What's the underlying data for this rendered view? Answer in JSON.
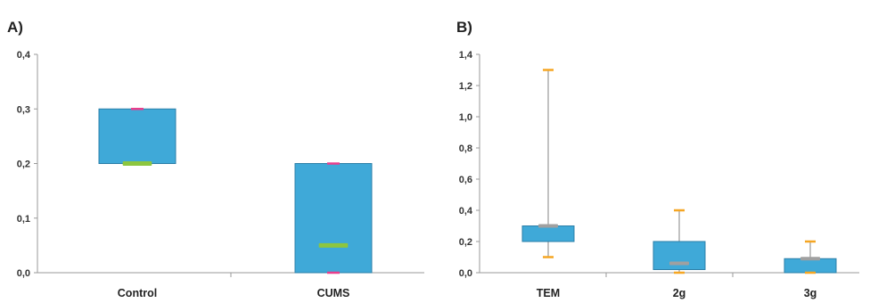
{
  "chart_data": [
    {
      "type": "box",
      "panel_label": "A)",
      "title": "",
      "xlabel": "",
      "ylabel": "",
      "ylim": [
        0,
        0.4
      ],
      "yticks": [
        "0,0",
        "0,1",
        "0,2",
        "0,3",
        "0,4"
      ],
      "ytick_values": [
        0,
        0.1,
        0.2,
        0.3,
        0.4
      ],
      "grid": false,
      "categories": [
        "Control",
        "CUMS"
      ],
      "boxes": [
        {
          "category": "Control",
          "min": 0.2,
          "q1": 0.2,
          "median": 0.2,
          "q3": 0.3,
          "max": 0.3
        },
        {
          "category": "CUMS",
          "min": 0.0,
          "q1": 0.0,
          "median": 0.05,
          "q3": 0.2,
          "max": 0.2
        }
      ],
      "colors": {
        "box": "#3fa9d8",
        "median": "#8dc63f",
        "whisker_cap": "#e83e8c"
      }
    },
    {
      "type": "box",
      "panel_label": "B)",
      "title": "",
      "xlabel": "",
      "ylabel": "",
      "ylim": [
        0,
        1.4
      ],
      "yticks": [
        "0,0",
        "0,2",
        "0,4",
        "0,6",
        "0,8",
        "1,0",
        "1,2",
        "1,4"
      ],
      "ytick_values": [
        0,
        0.2,
        0.4,
        0.6,
        0.8,
        1.0,
        1.2,
        1.4
      ],
      "grid": false,
      "categories": [
        "TEM",
        "2g",
        "3g"
      ],
      "boxes": [
        {
          "category": "TEM",
          "min": 0.1,
          "q1": 0.2,
          "median": 0.3,
          "q3": 0.3,
          "max": 1.3
        },
        {
          "category": "2g",
          "min": 0.0,
          "q1": 0.02,
          "median": 0.06,
          "q3": 0.2,
          "max": 0.4
        },
        {
          "category": "3g",
          "min": 0.0,
          "q1": 0.0,
          "median": 0.09,
          "q3": 0.09,
          "max": 0.2
        }
      ],
      "colors": {
        "box": "#3fa9d8",
        "median": "#a0a0a0",
        "whisker_cap": "#f5a623",
        "whisker": "#9a9a9a"
      }
    }
  ]
}
